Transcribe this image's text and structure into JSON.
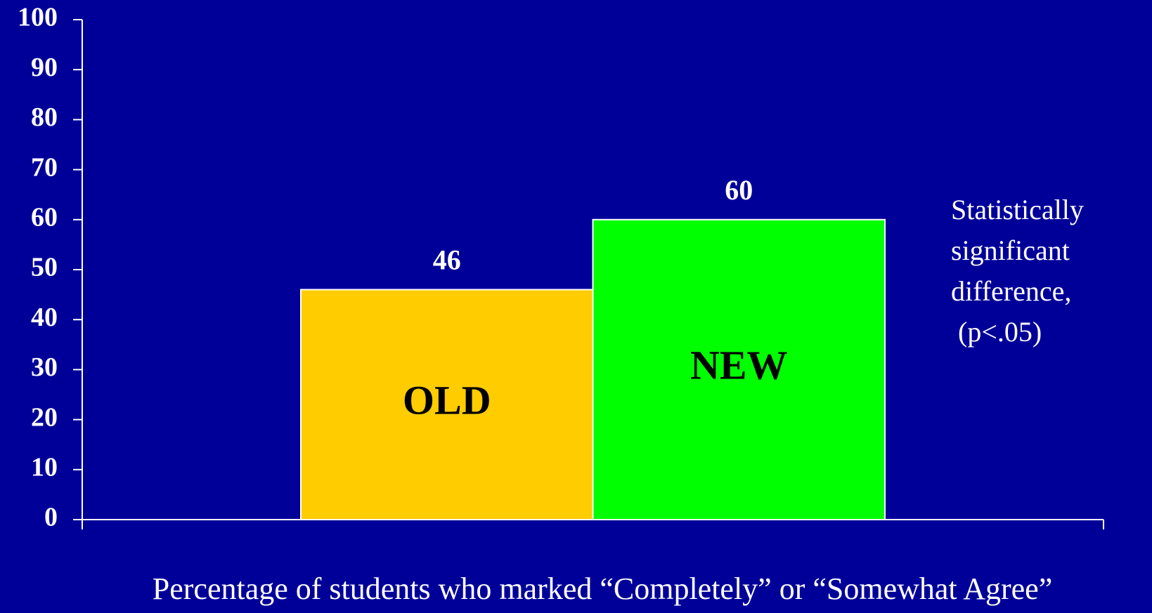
{
  "chart_data": {
    "type": "bar",
    "categories": [
      "OLD",
      "NEW"
    ],
    "values": [
      46,
      60
    ],
    "colors": [
      "#ffcc00",
      "#00ff00"
    ],
    "ylim": [
      0,
      100
    ],
    "yticks": [
      0,
      10,
      20,
      30,
      40,
      50,
      60,
      70,
      80,
      90,
      100
    ],
    "x_label": "Percentage of students who marked “Completely” or “Somewhat Agree”",
    "annotation": [
      "Statistically",
      "significant",
      "difference,",
      " (p<.05)"
    ]
  }
}
